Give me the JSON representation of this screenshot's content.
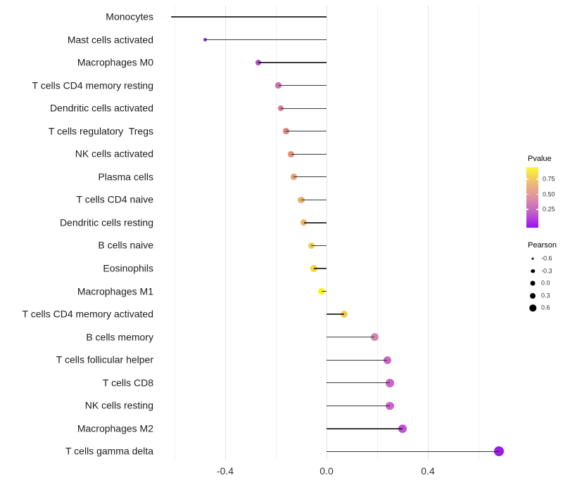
{
  "chart_data": {
    "type": "scatter",
    "subtype": "lollipop",
    "title": "",
    "xlabel": "",
    "ylabel": "",
    "x_axis": {
      "tick_labels": [
        "-0.4",
        "0.0",
        "0.4"
      ],
      "tick_values": [
        -0.4,
        0.0,
        0.4
      ],
      "major_gridlines": [
        -0.4,
        0.0,
        0.4
      ],
      "minor_gridlines": [
        -0.6,
        -0.2,
        0.2,
        0.6
      ],
      "range": [
        -0.65,
        0.78
      ],
      "grid": "vertical-only"
    },
    "legend_position": "right",
    "points": [
      {
        "label": "Monocytes",
        "pearson": -0.61,
        "color": "#8527E2"
      },
      {
        "label": "Mast cells activated",
        "pearson": -0.48,
        "color": "#8F2BD9"
      },
      {
        "label": "Macrophages M0",
        "pearson": -0.27,
        "color": "#BB4AD2"
      },
      {
        "label": "T cells CD4 memory resting",
        "pearson": -0.19,
        "color": "#D06FB0"
      },
      {
        "label": "Dendritic cells activated",
        "pearson": -0.18,
        "color": "#D87795"
      },
      {
        "label": "T cells regulatory  Tregs",
        "pearson": -0.16,
        "color": "#DE8485"
      },
      {
        "label": "NK cells activated",
        "pearson": -0.14,
        "color": "#E39078"
      },
      {
        "label": "Plasma cells",
        "pearson": -0.13,
        "color": "#E8A173"
      },
      {
        "label": "T cells CD4 naive",
        "pearson": -0.1,
        "color": "#EBAF68"
      },
      {
        "label": "Dendritic cells resting",
        "pearson": -0.09,
        "color": "#EDB65E"
      },
      {
        "label": "B cells naive",
        "pearson": -0.06,
        "color": "#F2CB49"
      },
      {
        "label": "Eosinophils",
        "pearson": -0.05,
        "color": "#F4D53C"
      },
      {
        "label": "Macrophages M1",
        "pearson": -0.02,
        "color": "#FCF409"
      },
      {
        "label": "T cells CD4 memory activated",
        "pearson": 0.07,
        "color": "#F0CB4E"
      },
      {
        "label": "B cells memory",
        "pearson": 0.19,
        "color": "#D686AF"
      },
      {
        "label": "T cells follicular helper",
        "pearson": 0.24,
        "color": "#CC64C6"
      },
      {
        "label": "T cells CD8",
        "pearson": 0.25,
        "color": "#CB65C6"
      },
      {
        "label": "NK cells resting",
        "pearson": 0.25,
        "color": "#CB64C7"
      },
      {
        "label": "Macrophages M2",
        "pearson": 0.3,
        "color": "#C351D7"
      },
      {
        "label": "T cells gamma delta",
        "pearson": 0.68,
        "color": "#9C1DE4"
      }
    ],
    "legend_pvalue": {
      "title": "Pvalue",
      "tick_labels": [
        "0.75",
        "0.50",
        "0.25"
      ],
      "gradient_top_to_bottom": [
        "#FDF82B",
        "#EEBE74",
        "#DD8FA3",
        "#C45EC8",
        "#9712F2"
      ]
    },
    "legend_pearson": {
      "title": "Pearson",
      "entries": [
        {
          "label": "-0.6",
          "size": 3
        },
        {
          "label": "-0.3",
          "size": 5.5
        },
        {
          "label": "0.0",
          "size": 7
        },
        {
          "label": "0.3",
          "size": 8
        },
        {
          "label": "0.6",
          "size": 9.5
        }
      ]
    }
  }
}
